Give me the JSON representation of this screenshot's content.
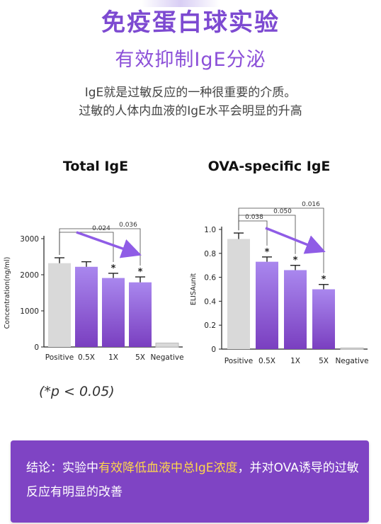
{
  "header": {
    "title": "免疫蛋白球实验",
    "subtitle": "有效抑制IgE分泌",
    "desc_line1": "IgE就是过敏反应的一种很重要的介质。",
    "desc_line2": "过敏的人体内血液的IgE水平会明显的升高"
  },
  "note": "(*p < 0.05)",
  "conclusion": {
    "part1": "结论：实验中",
    "highlight": "有效降低血液中总IgE浓度",
    "part2": "，并对OVA诱导的过敏反应有明显的改善"
  },
  "colors": {
    "title": "#7d4ad1",
    "positive_bar": "#d9d9d9",
    "bar_light": "#a987ee",
    "bar_dark": "#7a3fc0",
    "arrow": "#8f5ce6",
    "conclusion_bg": "#7f44c4",
    "highlight": "#ffd64a"
  },
  "chart_data": [
    {
      "type": "bar",
      "title": "Total IgE",
      "ylabel": "Concentration(ng/ml)",
      "categories": [
        "Positive",
        "0.5X",
        "1X",
        "5X",
        "Negative"
      ],
      "values": [
        2320,
        2220,
        1910,
        1790,
        110
      ],
      "errors": [
        150,
        140,
        130,
        150,
        0
      ],
      "significant": [
        false,
        false,
        true,
        true,
        false
      ],
      "ylim": [
        0,
        3000
      ],
      "yticks": [
        0,
        1000,
        2000,
        3000
      ],
      "comparisons": [
        {
          "from": 0,
          "to": 2,
          "label": "0.024"
        },
        {
          "from": 0,
          "to": 3,
          "label": "0.036"
        }
      ]
    },
    {
      "type": "bar",
      "title": "OVA-specific IgE",
      "ylabel": "ELISAunit",
      "categories": [
        "Positive",
        "0.5X",
        "1X",
        "5X",
        "Negative"
      ],
      "values": [
        0.92,
        0.73,
        0.66,
        0.5,
        0.01
      ],
      "errors": [
        0.05,
        0.04,
        0.04,
        0.04,
        0
      ],
      "significant": [
        false,
        true,
        true,
        true,
        false
      ],
      "ylim": [
        0,
        1.0
      ],
      "yticks": [
        "0",
        "0.2",
        "0.4",
        "0.6",
        "0.8",
        "1.0"
      ],
      "comparisons": [
        {
          "from": 0,
          "to": 1,
          "label": "0.038"
        },
        {
          "from": 0,
          "to": 2,
          "label": "0.050"
        },
        {
          "from": 0,
          "to": 3,
          "label": "0.016"
        }
      ]
    }
  ]
}
